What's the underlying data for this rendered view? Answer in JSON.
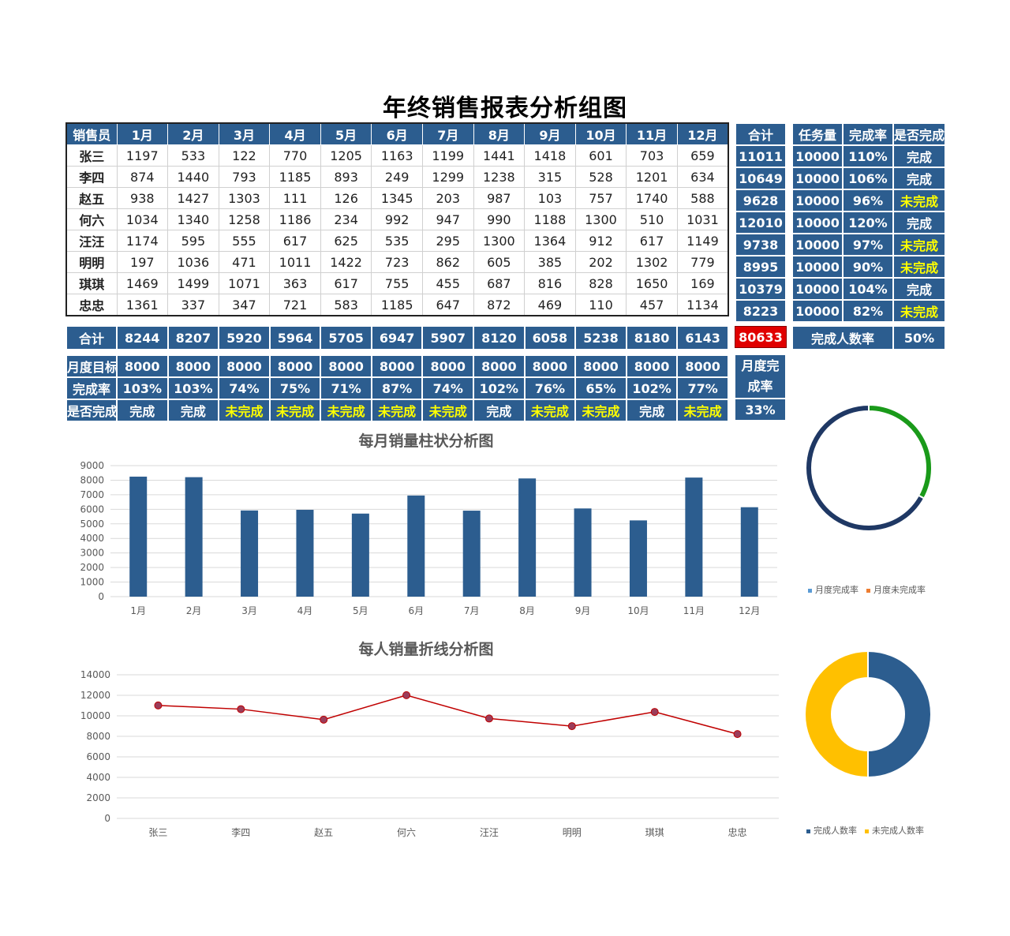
{
  "title": "年终销售报表分析组图",
  "table": {
    "header": [
      "销售员",
      "1月",
      "2月",
      "3月",
      "4月",
      "5月",
      "6月",
      "7月",
      "8月",
      "9月",
      "10月",
      "11月",
      "12月"
    ],
    "rows": [
      {
        "name": "张三",
        "values": [
          1197,
          533,
          122,
          770,
          1205,
          1163,
          1199,
          1441,
          1418,
          601,
          703,
          659
        ]
      },
      {
        "name": "李四",
        "values": [
          874,
          1440,
          793,
          1185,
          893,
          249,
          1299,
          1238,
          315,
          528,
          1201,
          634
        ]
      },
      {
        "name": "赵五",
        "values": [
          938,
          1427,
          1303,
          111,
          126,
          1345,
          203,
          987,
          103,
          757,
          1740,
          588
        ]
      },
      {
        "name": "何六",
        "values": [
          1034,
          1340,
          1258,
          1186,
          234,
          992,
          947,
          990,
          1188,
          1300,
          510,
          1031
        ]
      },
      {
        "name": "汪汪",
        "values": [
          1174,
          595,
          555,
          617,
          625,
          535,
          295,
          1300,
          1364,
          912,
          617,
          1149
        ]
      },
      {
        "name": "明明",
        "values": [
          197,
          1036,
          471,
          1011,
          1422,
          723,
          862,
          605,
          385,
          202,
          1302,
          779
        ]
      },
      {
        "name": "琪琪",
        "values": [
          1469,
          1499,
          1071,
          363,
          617,
          755,
          455,
          687,
          816,
          828,
          1650,
          169
        ]
      },
      {
        "name": "忠忠",
        "values": [
          1361,
          337,
          347,
          721,
          583,
          1185,
          647,
          872,
          469,
          110,
          457,
          1134
        ]
      }
    ]
  },
  "totals_col": {
    "header": "合计",
    "values": [
      11011,
      10649,
      9628,
      12010,
      9738,
      8995,
      10379,
      8223
    ]
  },
  "task_table": {
    "headers": [
      "任务量",
      "完成率",
      "是否完成"
    ],
    "rows": [
      [
        "10000",
        "110%",
        "完成"
      ],
      [
        "10000",
        "106%",
        "完成"
      ],
      [
        "10000",
        "96%",
        "未完成"
      ],
      [
        "10000",
        "120%",
        "完成"
      ],
      [
        "10000",
        "97%",
        "未完成"
      ],
      [
        "10000",
        "90%",
        "未完成"
      ],
      [
        "10000",
        "104%",
        "完成"
      ],
      [
        "10000",
        "82%",
        "未完成"
      ]
    ]
  },
  "sum_row": {
    "label": "合计",
    "values": [
      8244,
      8207,
      5920,
      5964,
      5705,
      6947,
      5907,
      8120,
      6058,
      5238,
      8180,
      6143
    ]
  },
  "grand_total": "80633",
  "done_count": {
    "label": "完成人数率",
    "value": "50%"
  },
  "month_target": {
    "label": "月度目标",
    "values": [
      8000,
      8000,
      8000,
      8000,
      8000,
      8000,
      8000,
      8000,
      8000,
      8000,
      8000,
      8000
    ]
  },
  "month_rate": {
    "label": "完成率",
    "values": [
      "103%",
      "103%",
      "74%",
      "75%",
      "71%",
      "87%",
      "74%",
      "102%",
      "76%",
      "65%",
      "102%",
      "77%"
    ]
  },
  "month_done": {
    "label": "是否完成",
    "values": [
      "完成",
      "完成",
      "未完成",
      "未完成",
      "未完成",
      "未完成",
      "未完成",
      "完成",
      "未完成",
      "未完成",
      "完成",
      "未完成"
    ]
  },
  "month_rate_box": {
    "label": "月度完成率",
    "value": "33%"
  },
  "colors": {
    "accent": "#2c5d8f",
    "red_line": "#c00000",
    "green": "#1a9a1a",
    "navy": "#1f3864",
    "gold": "#ffc000",
    "orange": "#ed7d31",
    "lightblue": "#5b9bd5"
  },
  "chart_data": [
    {
      "type": "bar",
      "title": "每月销量柱状分析图",
      "categories": [
        "1月",
        "2月",
        "3月",
        "4月",
        "5月",
        "6月",
        "7月",
        "8月",
        "9月",
        "10月",
        "11月",
        "12月"
      ],
      "values": [
        8244,
        8207,
        5920,
        5964,
        5705,
        6947,
        5907,
        8120,
        6058,
        5238,
        8180,
        6143
      ],
      "ylim": [
        0,
        9000
      ],
      "yticks": [
        0,
        1000,
        2000,
        3000,
        4000,
        5000,
        6000,
        7000,
        8000,
        9000
      ],
      "grid": true
    },
    {
      "type": "line",
      "title": "每人销量折线分析图",
      "categories": [
        "张三",
        "李四",
        "赵五",
        "何六",
        "汪汪",
        "明明",
        "琪琪",
        "忠忠"
      ],
      "values": [
        11011,
        10649,
        9628,
        12010,
        9738,
        8995,
        10379,
        8223
      ],
      "ylim": [
        0,
        14000
      ],
      "yticks": [
        0,
        2000,
        4000,
        6000,
        8000,
        10000,
        12000,
        14000
      ],
      "grid": true
    },
    {
      "type": "pie",
      "style": "donut",
      "labels": [
        "月度完成率",
        "月度未完成率"
      ],
      "values": [
        33,
        67
      ],
      "slice_colors": [
        "#1a9a1a",
        "#1f3864"
      ],
      "legend_colors": [
        "#5b9bd5",
        "#ed7d31"
      ],
      "legend": "bottom"
    },
    {
      "type": "pie",
      "style": "donut",
      "labels": [
        "完成人数率",
        "未完成人数率"
      ],
      "values": [
        50,
        50
      ],
      "slice_colors": [
        "#2c5d8f",
        "#ffc000"
      ],
      "legend": "bottom"
    }
  ]
}
